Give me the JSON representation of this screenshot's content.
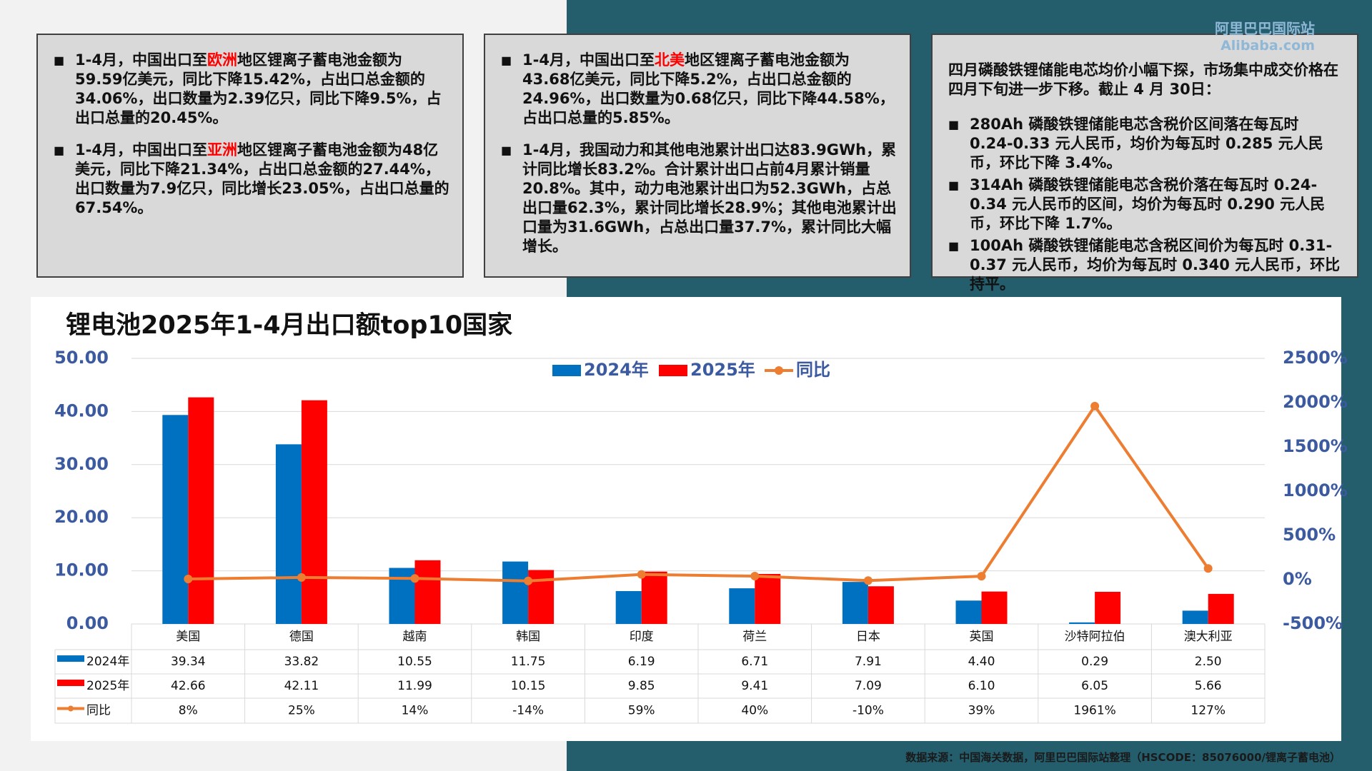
{
  "logo": {
    "name": "阿里巴巴国际站",
    "site": "Alibaba.com"
  },
  "text_boxes": [
    {
      "bullets": [
        {
          "before": "1-4月，中国出口至",
          "highlight": "欧洲",
          "after": "地区锂离子蓄电池金额为59.59亿美元，同比下降15.42%，占出口总金额的34.06%，出口数量为2.39亿只，同比下降9.5%，占出口总量的20.45%。"
        },
        {
          "before": "1-4月，中国出口至",
          "highlight": "亚洲",
          "after": "地区锂离子蓄电池金额为48亿美元，同比下降21.34%，占出口总金额的27.44%，出口数量为7.9亿只，同比增长23.05%，占出口总量的67.54%。"
        }
      ]
    },
    {
      "bullets": [
        {
          "before": "1-4月，中国出口至",
          "highlight": "北美",
          "after": "地区锂离子蓄电池金额为43.68亿美元，同比下降5.2%，占出口总金额的24.96%，出口数量为0.68亿只，同比下降44.58%，占出口总量的5.85%。"
        },
        {
          "text": "1-4月，我国动力和其他电池累计出口达83.9GWh，累计同比增长83.2%。合计累计出口占前4月累计销量20.8%。其中，动力电池累计出口为52.3GWh，占总出口量62.3%，累计同比增长28.9%；其他电池累计出口量为31.6GWh，占总出口量37.7%，累计同比大幅增长。"
        }
      ]
    },
    {
      "intro": "四月磷酸铁锂储能电芯均价小幅下探，市场集中成交价格在四月下旬进一步下移。截止 4 月 30日：",
      "bullets": [
        {
          "text": "280Ah 磷酸铁锂储能电芯含税价区间落在每瓦时 0.24-0.33 元人民币，均价为每瓦时 0.285 元人民币，环比下降 3.4%。"
        },
        {
          "text": "314Ah 磷酸铁锂储能电芯含税价落在每瓦时 0.24-0.34 元人民币的区间，均价为每瓦时 0.290 元人民币，环比下降 1.7%。"
        },
        {
          "text": "100Ah 磷酸铁锂储能电芯含税区间价为每瓦时 0.31-0.37 元人民币，均价为每瓦时 0.340 元人民币，环比持平。"
        }
      ]
    }
  ],
  "chart_data": {
    "type": "bar",
    "title": "锂电池2025年1-4月出口额top10国家",
    "categories": [
      "美国",
      "德国",
      "越南",
      "韩国",
      "印度",
      "荷兰",
      "日本",
      "英国",
      "沙特阿拉伯",
      "澳大利亚"
    ],
    "series": [
      {
        "name": "2024年",
        "color": "#0070c0",
        "values": [
          39.34,
          33.82,
          10.55,
          11.75,
          6.19,
          6.71,
          7.91,
          4.4,
          0.29,
          2.5
        ],
        "value_labels": [
          "39.34",
          "33.82",
          "10.55",
          "11.75",
          "6.19",
          "6.71",
          "7.91",
          "4.40",
          "0.29",
          "2.50"
        ]
      },
      {
        "name": "2025年",
        "color": "#ff0000",
        "values": [
          42.66,
          42.11,
          11.99,
          10.15,
          9.85,
          9.41,
          7.09,
          6.1,
          6.05,
          5.66
        ],
        "value_labels": [
          "42.66",
          "42.11",
          "11.99",
          "10.15",
          "9.85",
          "9.41",
          "7.09",
          "6.10",
          "6.05",
          "5.66"
        ]
      },
      {
        "name": "同比",
        "type": "line",
        "axis": "y2",
        "color": "#ed7d31",
        "values": [
          8,
          25,
          14,
          -14,
          59,
          40,
          -10,
          39,
          1961,
          127
        ],
        "value_labels": [
          "8%",
          "25%",
          "14%",
          "-14%",
          "59%",
          "40%",
          "-10%",
          "39%",
          "1961%",
          "127%"
        ]
      }
    ],
    "ylim": [
      0,
      50
    ],
    "yticks": [
      {
        "value": 0,
        "label": "0.00"
      },
      {
        "value": 10,
        "label": "10.00"
      },
      {
        "value": 20,
        "label": "20.00"
      },
      {
        "value": 30,
        "label": "30.00"
      },
      {
        "value": 40,
        "label": "40.00"
      },
      {
        "value": 50,
        "label": "50.00"
      }
    ],
    "y2lim": [
      -500,
      2500
    ],
    "y2ticks": [
      {
        "value": -500,
        "label": "-500%"
      },
      {
        "value": 0,
        "label": "0%"
      },
      {
        "value": 500,
        "label": "500%"
      },
      {
        "value": 1000,
        "label": "1000%"
      },
      {
        "value": 1500,
        "label": "1500%"
      },
      {
        "value": 2000,
        "label": "2000%"
      },
      {
        "value": 2500,
        "label": "2500%"
      }
    ],
    "grid": true,
    "legend": "top"
  },
  "source": "数据来源：中国海关数据，阿里巴巴国际站整理（HSCODE：85076000/锂离子蓄电池）"
}
